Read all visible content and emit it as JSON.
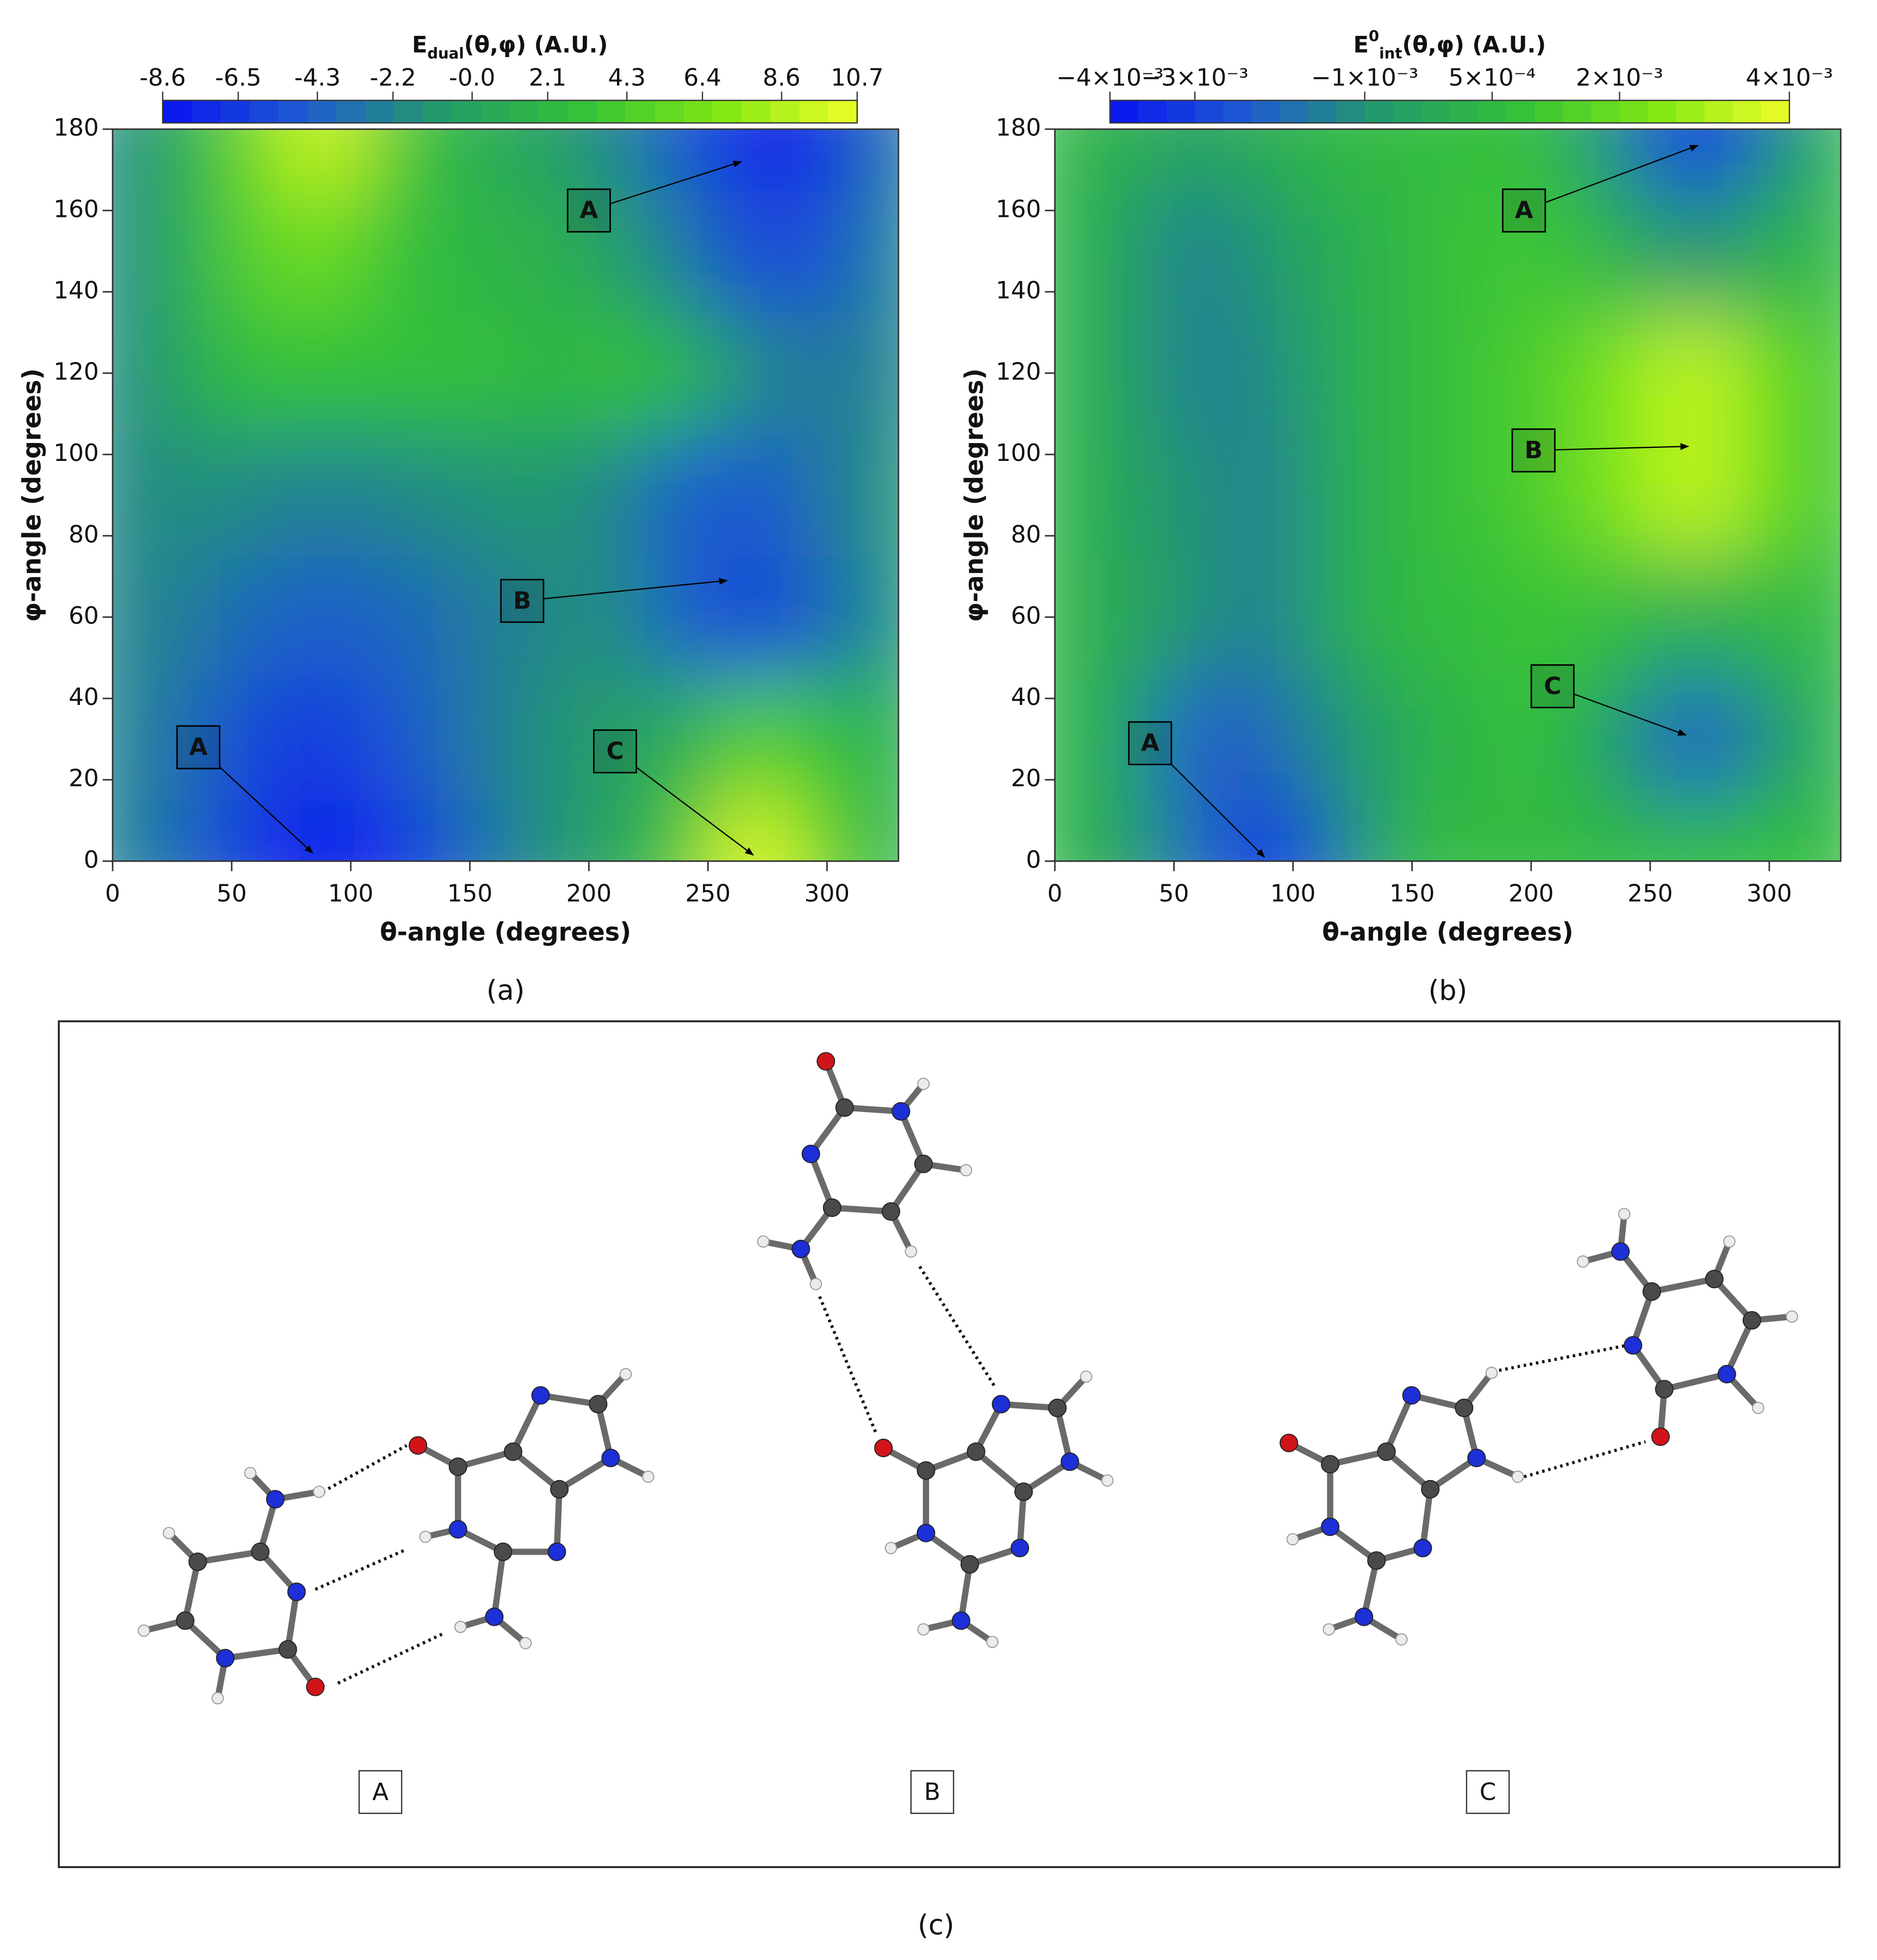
{
  "chart_data": [
    {
      "type": "contour",
      "panel_label": "(a)",
      "colorbar_label": {
        "base": "E",
        "sub": "dual",
        "rest": "(θ,φ) (A.U.)"
      },
      "xlabel": "θ-angle (degrees)",
      "ylabel": "φ-angle (degrees)",
      "xlim": [
        0,
        330
      ],
      "ylim": [
        0,
        180
      ],
      "xticks": [
        0,
        50,
        100,
        150,
        200,
        250,
        300
      ],
      "yticks": [
        0,
        20,
        40,
        60,
        80,
        100,
        120,
        140,
        160,
        180
      ],
      "zlim": [
        -8.6,
        10.7
      ],
      "zticks": [
        -8.6,
        -6.5,
        -4.3,
        -2.2,
        {
          "value": 0,
          "label": "-0.0"
        },
        2.1,
        4.3,
        6.4,
        8.6,
        10.7
      ],
      "colormap": [
        "#0a14f0",
        "#1e5ad2",
        "#249a6a",
        "#33c03a",
        "#7ee614",
        "#f0ff28"
      ],
      "x": [
        0,
        30,
        60,
        90,
        120,
        150,
        180,
        210,
        240,
        270,
        300,
        330
      ],
      "y": [
        0,
        30,
        60,
        90,
        120,
        150,
        180
      ],
      "z": [
        [
          -2,
          -4,
          -7,
          -8.6,
          -7,
          -4,
          -1.5,
          0,
          4,
          10.7,
          5,
          1
        ],
        [
          -2,
          -3.5,
          -6,
          -6.5,
          -5,
          -3,
          -1.5,
          -0.5,
          1,
          5,
          3,
          1
        ],
        [
          -2,
          -2.5,
          -4,
          -4.5,
          -4,
          -3,
          -2,
          -1.5,
          -4.5,
          -6,
          -4,
          -1
        ],
        [
          -2,
          -1.5,
          -2,
          -2.5,
          -2,
          -1.5,
          -1,
          -2,
          -4.5,
          -5,
          -3,
          -1
        ],
        [
          -2,
          0.5,
          3,
          3,
          3,
          3,
          2,
          3,
          2,
          -2,
          -3,
          -2
        ],
        [
          -2,
          1,
          5,
          6,
          3,
          2,
          1.5,
          0,
          -3,
          -6,
          -5,
          -2
        ],
        [
          -2,
          1,
          6,
          10,
          4,
          1,
          0,
          -2,
          -5,
          -8,
          -7,
          -3
        ]
      ],
      "annotations": [
        {
          "text": "A",
          "x": 36,
          "y": 28,
          "xy": [
            84,
            2
          ]
        },
        {
          "text": "A",
          "x": 200,
          "y": 160,
          "xy": [
            264,
            172
          ]
        },
        {
          "text": "B",
          "x": 172,
          "y": 64,
          "xy": [
            258,
            69
          ]
        },
        {
          "text": "C",
          "x": 211,
          "y": 27,
          "xy": [
            269,
            1.5
          ]
        }
      ]
    },
    {
      "type": "contour",
      "panel_label": "(b)",
      "colorbar_label": {
        "base": "E",
        "sup": "0",
        "sub": "int",
        "rest": "(θ,φ) (A.U.)"
      },
      "xlabel": "θ-angle (degrees)",
      "ylabel": "φ-angle (degrees)",
      "xlim": [
        0,
        330
      ],
      "ylim": [
        0,
        180
      ],
      "xticks": [
        0,
        50,
        100,
        150,
        200,
        250,
        300
      ],
      "yticks": [
        0,
        20,
        40,
        60,
        80,
        100,
        120,
        140,
        160,
        180
      ],
      "zlim": [
        -0.004,
        0.004
      ],
      "zticks": [
        {
          "value": -0.004,
          "label": "−4×10⁻³"
        },
        {
          "value": -0.003,
          "label": "−3×10⁻³"
        },
        {
          "value": -0.001,
          "label": "−1×10⁻³"
        },
        {
          "value": 0.0005,
          "label": "5×10⁻⁴"
        },
        {
          "value": 0.002,
          "label": "2×10⁻³"
        },
        {
          "value": 0.004,
          "label": "4×10⁻³"
        }
      ],
      "colormap": [
        "#0a14f0",
        "#1e5ad2",
        "#249a6a",
        "#33c03a",
        "#7ee614",
        "#f0ff28"
      ],
      "x": [
        0,
        30,
        60,
        90,
        120,
        150,
        180,
        210,
        240,
        270,
        300,
        330
      ],
      "y": [
        0,
        30,
        60,
        90,
        120,
        150,
        180
      ],
      "z": [
        [
          0.0005,
          -0.0005,
          -0.002,
          -0.004,
          -0.0015,
          0.0005,
          0.0005,
          0.0005,
          0.0005,
          0.0005,
          0.0008,
          0.0005
        ],
        [
          0.0005,
          -0.0005,
          -0.0025,
          -0.002,
          -0.001,
          0,
          0.0005,
          0.0008,
          -0.001,
          -0.0025,
          -0.001,
          0.0005
        ],
        [
          0.0005,
          -0.0003,
          -0.001,
          -0.0015,
          0,
          0.0005,
          0.0008,
          0.001,
          0.0005,
          0,
          0.0005,
          0.0005
        ],
        [
          0.0005,
          -0.0005,
          -0.001,
          -0.0015,
          0,
          0.0005,
          0.001,
          0.0015,
          0.0025,
          0.0035,
          0.002,
          0.001
        ],
        [
          0.0005,
          -0.0005,
          -0.0015,
          -0.0012,
          0,
          0.0005,
          0.001,
          0.0015,
          0.0025,
          0.0035,
          0.002,
          0.001
        ],
        [
          0.0005,
          -0.0005,
          -0.0015,
          -0.0008,
          0,
          0.0005,
          0.001,
          0.001,
          0,
          -0.001,
          0,
          0.0005
        ],
        [
          0.0005,
          0,
          -0.0005,
          0,
          0.0005,
          0.0005,
          0.0008,
          0.0005,
          -0.0015,
          -0.004,
          -0.0015,
          0.0005
        ]
      ],
      "annotations": [
        {
          "text": "A",
          "x": 197,
          "y": 160,
          "xy": [
            270,
            176
          ]
        },
        {
          "text": "B",
          "x": 201,
          "y": 101,
          "xy": [
            266,
            102
          ]
        },
        {
          "text": "C",
          "x": 209,
          "y": 43,
          "xy": [
            265,
            31
          ]
        },
        {
          "text": "A",
          "x": 40,
          "y": 29,
          "xy": [
            88,
            1
          ]
        }
      ]
    }
  ],
  "panel_c": {
    "label": "(c)",
    "structures": [
      "A",
      "B",
      "C"
    ]
  }
}
